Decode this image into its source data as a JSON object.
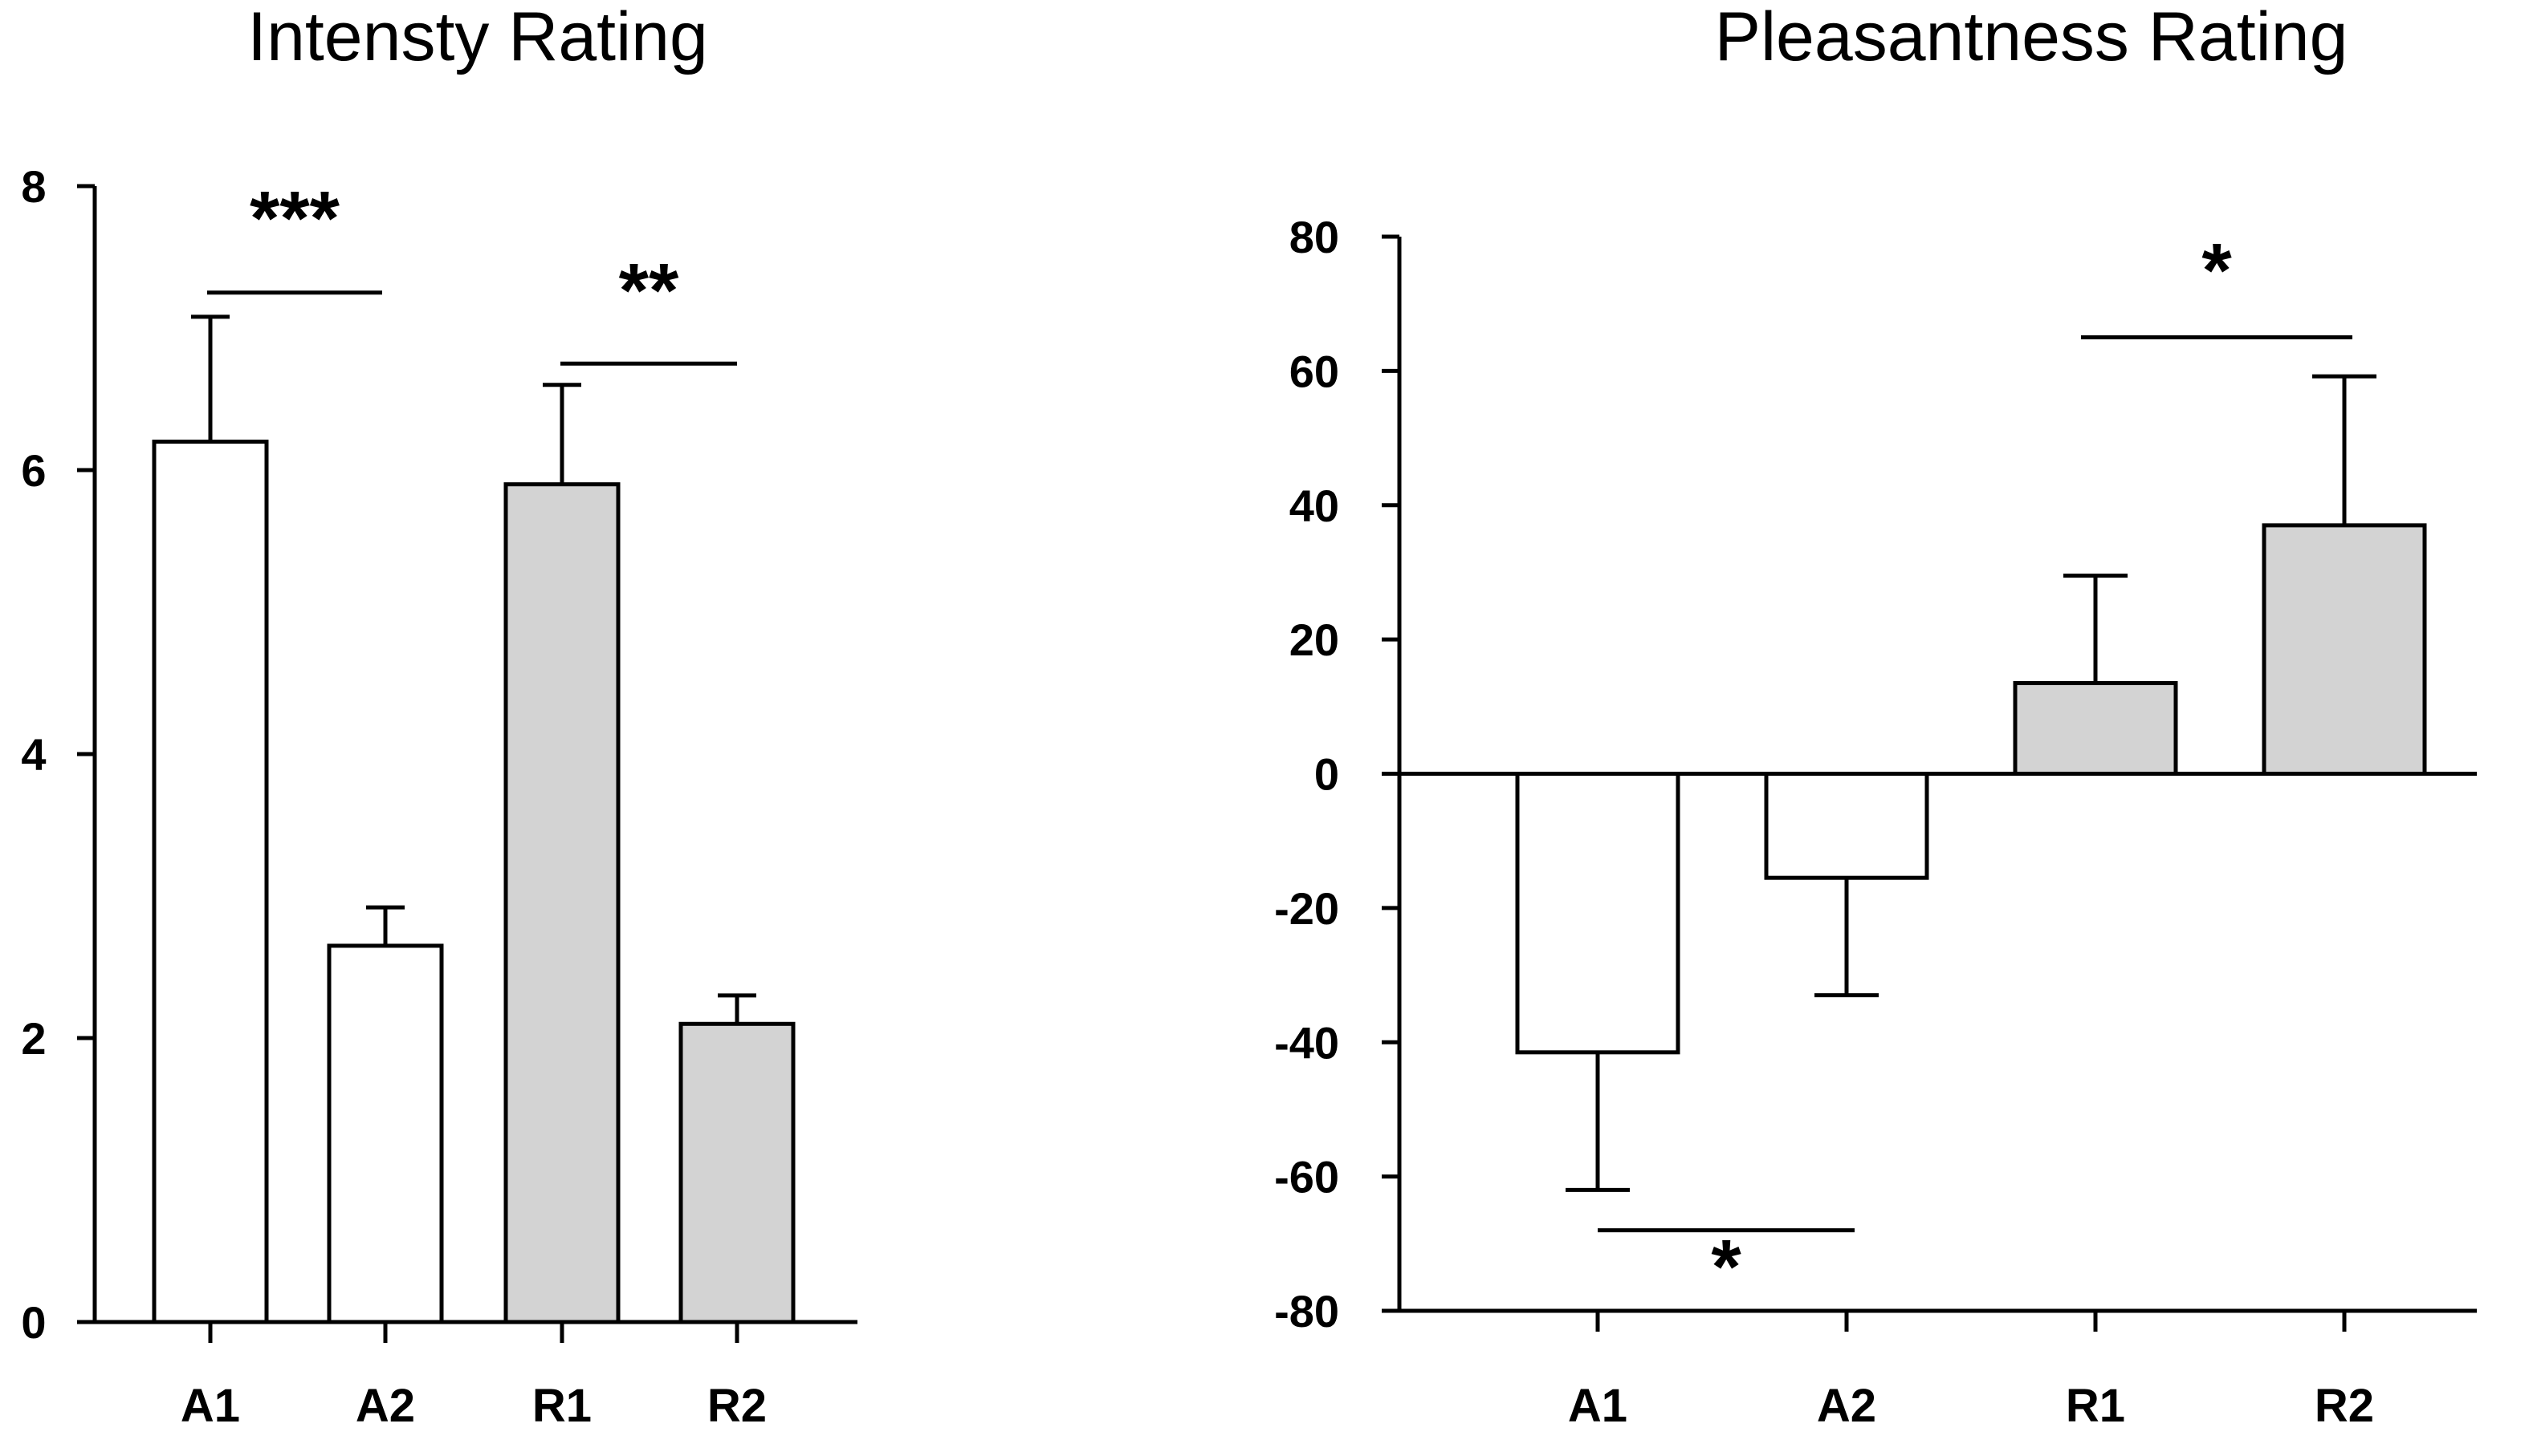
{
  "chart_data": [
    {
      "type": "bar",
      "title": "Intensty Rating",
      "xlabel": "",
      "ylabel": "",
      "ylim": [
        0,
        8
      ],
      "yticks": [
        "0",
        "2",
        "4",
        "6",
        "8"
      ],
      "categories": [
        "A1",
        "A2",
        "R1",
        "R2"
      ],
      "values": [
        6.2,
        2.65,
        5.9,
        2.1
      ],
      "errors": [
        0.88,
        0.27,
        0.7,
        0.2
      ],
      "fills": [
        "#ffffff",
        "#ffffff",
        "#d3d3d3",
        "#d3d3d3"
      ],
      "significance": [
        {
          "from": "A1",
          "to": "A2",
          "label": "***",
          "at": 7.25
        },
        {
          "from": "R1",
          "to": "R2",
          "label": "**",
          "at": 6.75
        }
      ]
    },
    {
      "type": "bar",
      "title": "Pleasantness Rating",
      "xlabel": "",
      "ylabel": "",
      "ylim": [
        -80,
        80
      ],
      "yticks": [
        "80",
        "60",
        "40",
        "20",
        "0",
        "-20",
        "-40",
        "-60",
        "-80"
      ],
      "categories": [
        "A1",
        "A2",
        "R1",
        "R2"
      ],
      "values": [
        -41.5,
        -15.5,
        13.5,
        37
      ],
      "errors": [
        20.5,
        17.5,
        16,
        22.2
      ],
      "fills": [
        "#ffffff",
        "#ffffff",
        "#d3d3d3",
        "#d3d3d3"
      ],
      "significance": [
        {
          "from": "A1",
          "to": "A2",
          "label": "*",
          "at": -68,
          "label_below": true
        },
        {
          "from": "R1",
          "to": "R2",
          "label": "*",
          "at": 65
        }
      ]
    }
  ]
}
